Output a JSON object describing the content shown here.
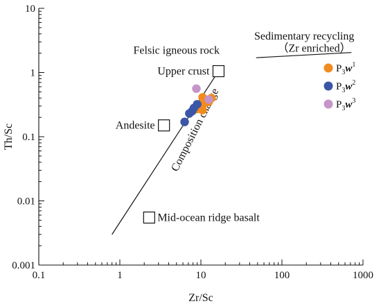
{
  "chart_data": {
    "type": "scatter",
    "xlabel": "Zr/Sc",
    "ylabel": "Th/Sc",
    "xscale": "log",
    "yscale": "log",
    "xlim": [
      0.1,
      1000
    ],
    "ylim": [
      0.001,
      10
    ],
    "xticks": [
      {
        "value": 0.1,
        "label": "0.1"
      },
      {
        "value": 1,
        "label": "1"
      },
      {
        "value": 10,
        "label": "10"
      },
      {
        "value": 100,
        "label": "100"
      },
      {
        "value": 1000,
        "label": "1000"
      }
    ],
    "yticks": [
      {
        "value": 0.001,
        "label": "0.001"
      },
      {
        "value": 0.01,
        "label": "0.01"
      },
      {
        "value": 0.1,
        "label": "0.1"
      },
      {
        "value": 1,
        "label": "1"
      },
      {
        "value": 10,
        "label": "10"
      }
    ],
    "grid": false,
    "legend_position": "top-right",
    "series": [
      {
        "name": "P3w1",
        "label_base": "P",
        "label_sub": "3",
        "label_italic": "w",
        "label_sup": "1",
        "color": "#f28b1e",
        "points": [
          [
            9.0,
            0.27
          ],
          [
            10.5,
            0.41
          ],
          [
            11.0,
            0.33
          ],
          [
            12.5,
            0.35
          ],
          [
            13.5,
            0.4
          ],
          [
            10.5,
            0.26
          ]
        ]
      },
      {
        "name": "P3w2",
        "label_base": "P",
        "label_sub": "3",
        "label_italic": "w",
        "label_sup": "2",
        "color": "#3b56a6",
        "points": [
          [
            6.3,
            0.17
          ],
          [
            7.2,
            0.23
          ],
          [
            7.8,
            0.25
          ],
          [
            8.2,
            0.28
          ],
          [
            9.0,
            0.32
          ]
        ]
      },
      {
        "name": "P3w3",
        "label_base": "P",
        "label_sub": "3",
        "label_italic": "w",
        "label_sup": "3",
        "color": "#c595c9",
        "points": [
          [
            8.8,
            0.56
          ],
          [
            12.5,
            0.38
          ]
        ]
      }
    ],
    "reference_boxes": [
      {
        "label": "Mid-ocean ridge basalt",
        "x": 2.3,
        "y": 0.0055,
        "label_side": "right"
      },
      {
        "label": "Andesite",
        "x": 3.5,
        "y": 0.15,
        "label_side": "left"
      },
      {
        "label": "Upper crust",
        "x": 16.5,
        "y": 1.05,
        "label_side": "left"
      }
    ],
    "annotations": [
      {
        "text": "Felsic igneous rock",
        "x": 17.0,
        "y": 1.95,
        "anchor": "end"
      },
      {
        "text": "Sedimentary recycling",
        "x": 780,
        "y": 3.25,
        "anchor": "end"
      },
      {
        "text": "（Zr  enriched）",
        "x": 250,
        "y": 2.1,
        "anchor": "middle"
      },
      {
        "text": "Composition change",
        "x": 5.1,
        "y": 0.028,
        "anchor": "start",
        "rotate": -63
      }
    ],
    "lines": [
      {
        "name": "composition-change-line",
        "points": [
          [
            0.8,
            0.003
          ],
          [
            16.5,
            1.05
          ]
        ]
      },
      {
        "name": "sedimentary-recycling-line",
        "points": [
          [
            48,
            1.7
          ],
          [
            720,
            2.05
          ]
        ]
      }
    ]
  }
}
